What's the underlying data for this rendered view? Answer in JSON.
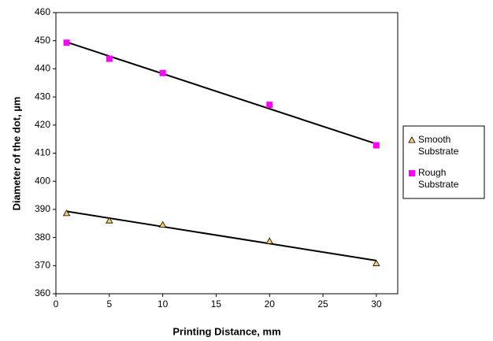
{
  "chart_data": {
    "type": "scatter",
    "x_label": "Printing Distance, mm",
    "y_label": "Diameter of the dot, µm",
    "x": [
      1,
      5,
      10,
      20,
      30
    ],
    "series": [
      {
        "name": "Smooth Substrate",
        "color": "#ffcc66",
        "marker": "triangle",
        "values": [
          388.6,
          386,
          384.5,
          378.7,
          370.8
        ],
        "trend": [
          389.3,
          371.8
        ]
      },
      {
        "name": "Rough Substrate",
        "color": "#ff00ff",
        "marker": "square",
        "values": [
          449.3,
          443.6,
          438.5,
          427.2,
          412.8
        ],
        "trend": [
          449.5,
          413.3
        ]
      }
    ],
    "trend_x": [
      1,
      30
    ],
    "xlim": [
      0,
      32
    ],
    "ylim": [
      360,
      460
    ],
    "xticks": [
      0,
      5,
      10,
      15,
      20,
      25,
      30
    ],
    "yticks": [
      360,
      370,
      380,
      390,
      400,
      410,
      420,
      430,
      440,
      450,
      460
    ],
    "grid": false,
    "legend": "right"
  }
}
